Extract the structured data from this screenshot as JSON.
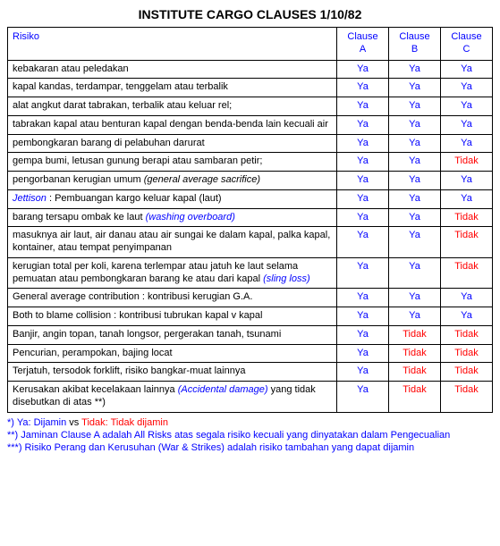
{
  "title": "INSTITUTE CARGO CLAUSES 1/10/82",
  "headers": {
    "risk": "Risiko",
    "a": "Clause A",
    "b": "Clause B",
    "c": "Clause C"
  },
  "val": {
    "ya": "Ya",
    "tidak": "Tidak"
  },
  "rows": [
    {
      "text": "kebakaran atau peledakan",
      "a": "ya",
      "b": "ya",
      "c": "ya"
    },
    {
      "text": "kapal kandas, terdampar, tenggelam atau terbalik",
      "a": "ya",
      "b": "ya",
      "c": "ya"
    },
    {
      "text": "alat angkut darat tabrakan, terbalik atau keluar rel;",
      "a": "ya",
      "b": "ya",
      "c": "ya"
    },
    {
      "text": "tabrakan kapal atau benturan kapal dengan benda-benda lain kecuali air",
      "a": "ya",
      "b": "ya",
      "c": "ya"
    },
    {
      "text": "pembongkaran barang di pelabuhan darurat",
      "a": "ya",
      "b": "ya",
      "c": "ya"
    },
    {
      "text": "gempa bumi, letusan gunung berapi atau sambaran petir;",
      "a": "ya",
      "b": "ya",
      "c": "tidak"
    },
    {
      "text": "pengorbanan kerugian umum ",
      "italic_suffix": "(general average sacrifice)",
      "a": "ya",
      "b": "ya",
      "c": "ya"
    },
    {
      "blue_italic_prefix": "Jettison",
      "text_after": " : Pembuangan kargo keluar kapal (laut)",
      "a": "ya",
      "b": "ya",
      "c": "ya"
    },
    {
      "text": "barang tersapu ombak ke laut ",
      "blue_italic_suffix": "(washing overboard)",
      "a": "ya",
      "b": "ya",
      "c": "tidak"
    },
    {
      "text": "masuknya air laut, air danau atau air sungai ke dalam kapal, palka kapal, kontainer, atau tempat penyimpanan",
      "a": "ya",
      "b": "ya",
      "c": "tidak"
    },
    {
      "text": "kerugian total per koli, karena terlempar atau jatuh ke laut selama pemuatan atau pembongkaran barang ke atau dari kapal ",
      "blue_italic_suffix": "(sling loss)",
      "a": "ya",
      "b": "ya",
      "c": "tidak"
    },
    {
      "text": "General average contribution : kontribusi kerugian G.A.",
      "a": "ya",
      "b": "ya",
      "c": "ya"
    },
    {
      "text": "Both to blame collision : kontribusi tubrukan kapal v kapal",
      "a": "ya",
      "b": "ya",
      "c": "ya"
    },
    {
      "text": "Banjir, angin topan, tanah longsor, pergerakan tanah, tsunami",
      "a": "ya",
      "b": "tidak",
      "c": "tidak"
    },
    {
      "text": "Pencurian, perampokan, bajing locat",
      "a": "ya",
      "b": "tidak",
      "c": "tidak"
    },
    {
      "text": "Terjatuh, tersodok forklift, risiko bangkar-muat lainnya",
      "a": "ya",
      "b": "tidak",
      "c": "tidak"
    },
    {
      "text": "Kerusakan akibat kecelakaan lainnya ",
      "blue_italic_mid": "(Accidental damage)",
      "text_tail": " yang tidak disebutkan di atas **)",
      "a": "ya",
      "b": "tidak",
      "c": "tidak"
    }
  ],
  "footnotes": {
    "f1_pre": "*) ",
    "f1_ya": "Ya: Dijamin",
    "f1_vs": " vs ",
    "f1_tidak": "Tidak: Tidak dijamin",
    "f2": "**) Jaminan Clause A adalah All Risks atas segala risiko kecuali yang dinyatakan dalam Pengecualian",
    "f3": "***) Risiko Perang dan Kerusuhan (War & Strikes) adalah risiko tambahan yang dapat dijamin"
  }
}
